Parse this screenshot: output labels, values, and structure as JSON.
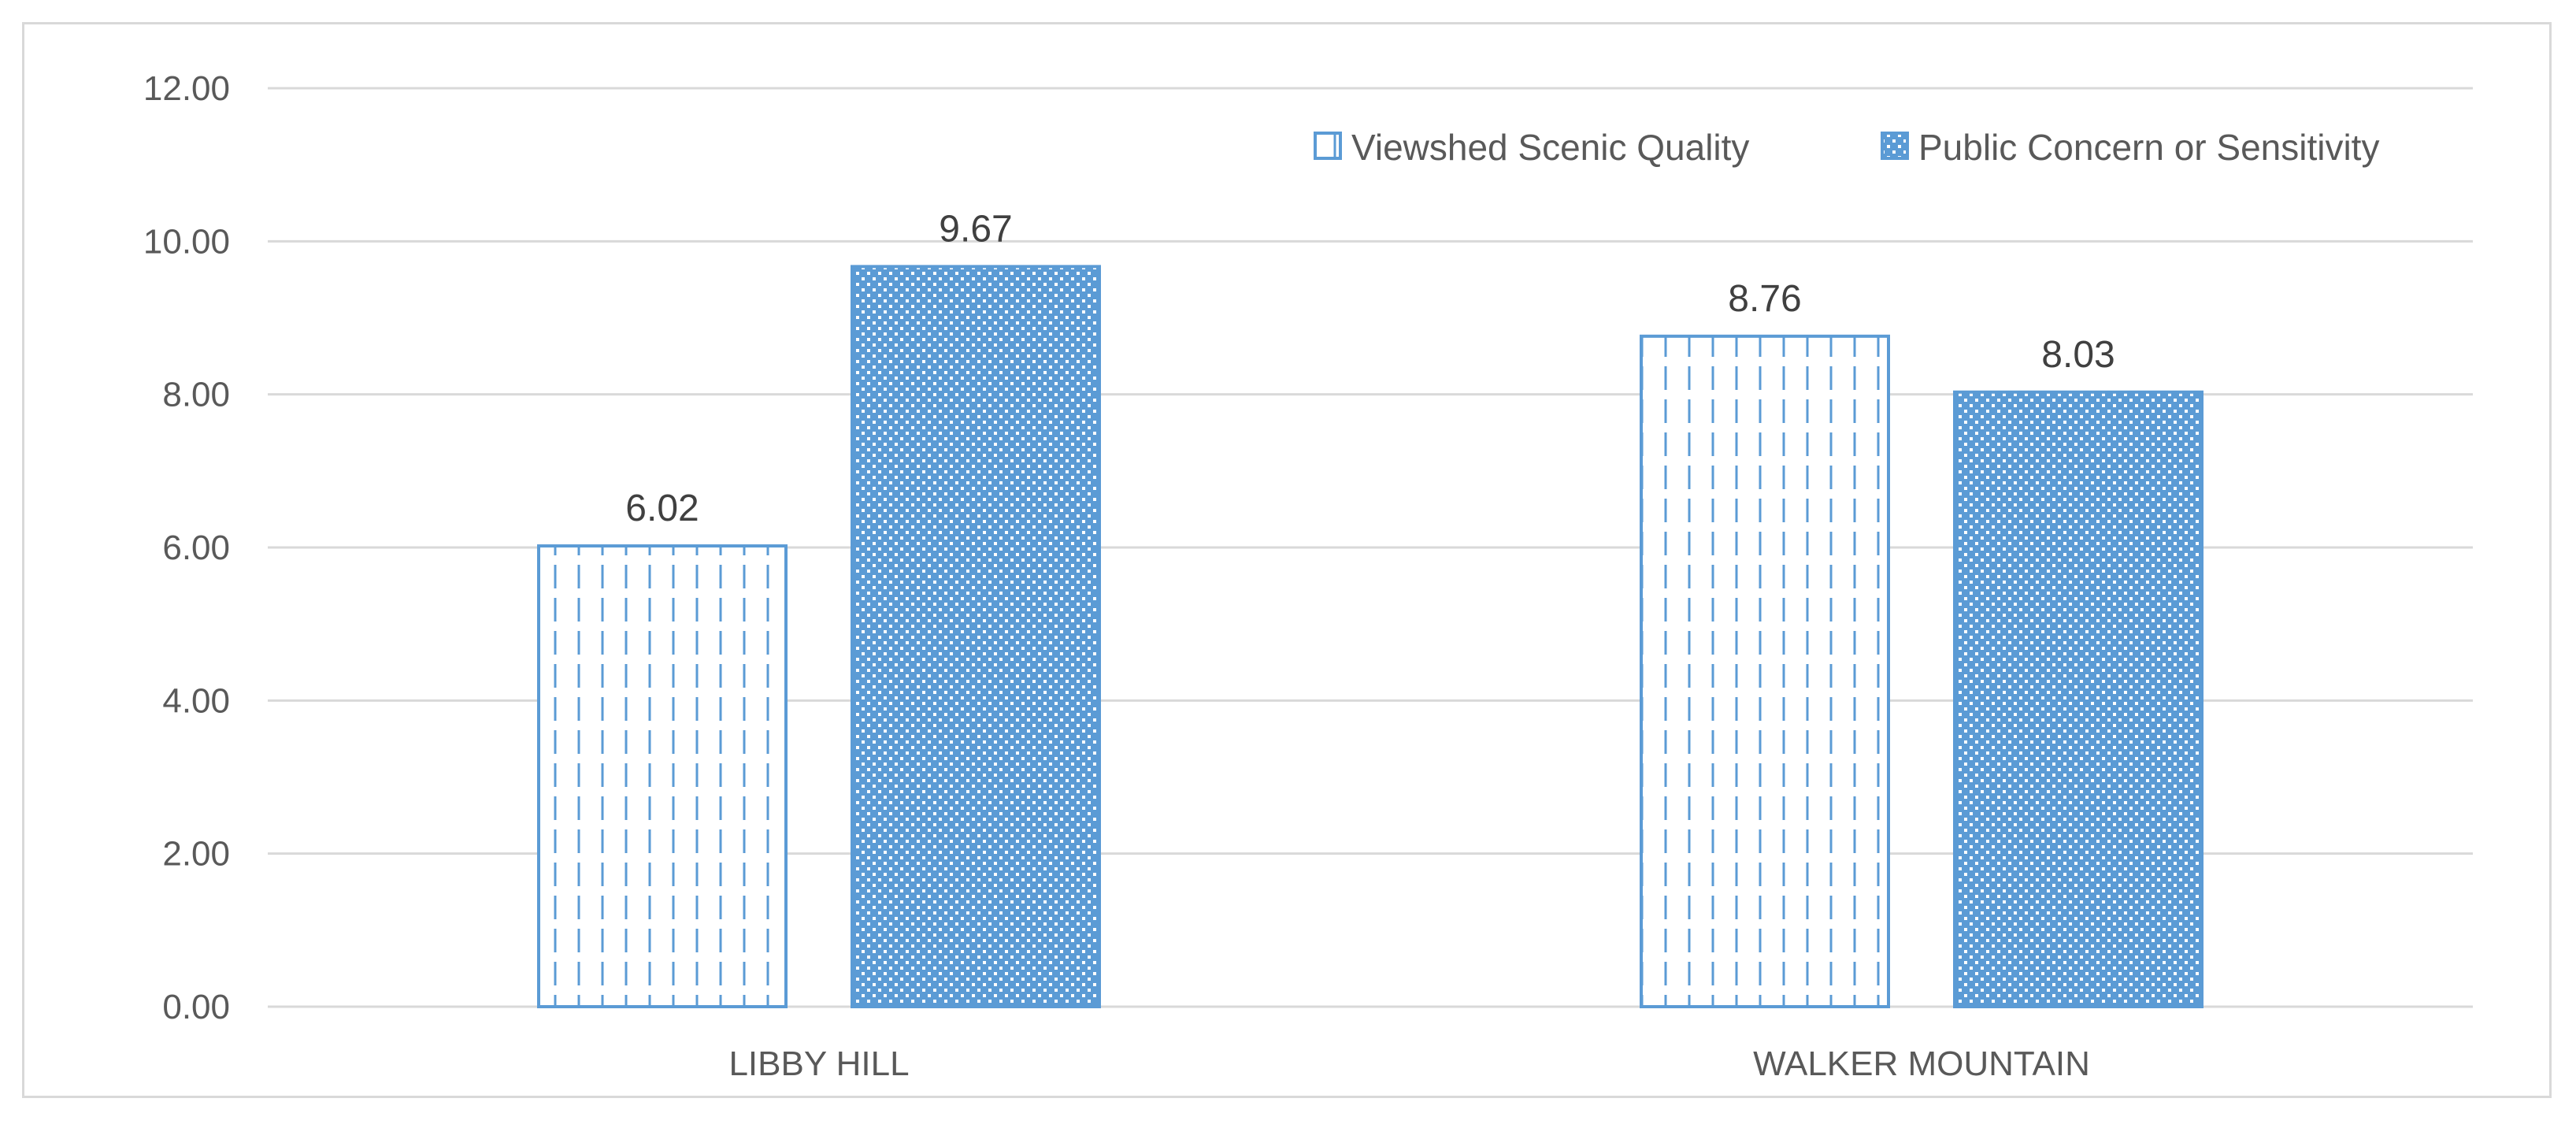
{
  "colors": {
    "accent": "#5b9bd5",
    "gridline": "#d9d9d9",
    "text": "#595959",
    "data_label": "#404040"
  },
  "chart_data": {
    "type": "bar",
    "title": "",
    "xlabel": "",
    "ylabel": "",
    "categories": [
      "LIBBY HILL",
      "WALKER MOUNTAIN"
    ],
    "series": [
      {
        "name": "Viewshed Scenic Quality",
        "values": [
          6.02,
          8.76
        ],
        "pattern": "dashed-vertical"
      },
      {
        "name": "Public Concern or Sensitivity",
        "values": [
          9.67,
          8.03
        ],
        "pattern": "dotted-grid"
      }
    ],
    "ylim": [
      0,
      12
    ],
    "yticks": [
      "0.00",
      "2.00",
      "4.00",
      "6.00",
      "8.00",
      "10.00",
      "12.00"
    ],
    "data_labels": [
      [
        "6.02",
        "8.76"
      ],
      [
        "9.67",
        "8.03"
      ]
    ],
    "grid": true,
    "legend_position": "top-right"
  }
}
